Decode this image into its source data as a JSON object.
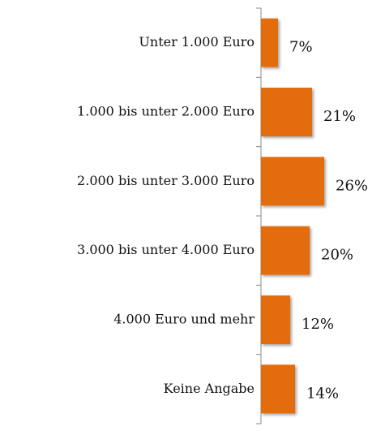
{
  "chart_data": {
    "type": "bar",
    "orientation": "horizontal",
    "categories": [
      "Unter 1.000 Euro",
      "1.000 bis unter 2.000 Euro",
      "2.000 bis unter 3.000 Euro",
      "3.000 bis unter 4.000 Euro",
      "4.000 Euro und mehr",
      "Keine Angabe"
    ],
    "values": [
      7,
      21,
      26,
      20,
      12,
      14
    ],
    "value_labels": [
      "7%",
      "21%",
      "26%",
      "20%",
      "12%",
      "14%"
    ],
    "color": "#e36c0a"
  }
}
